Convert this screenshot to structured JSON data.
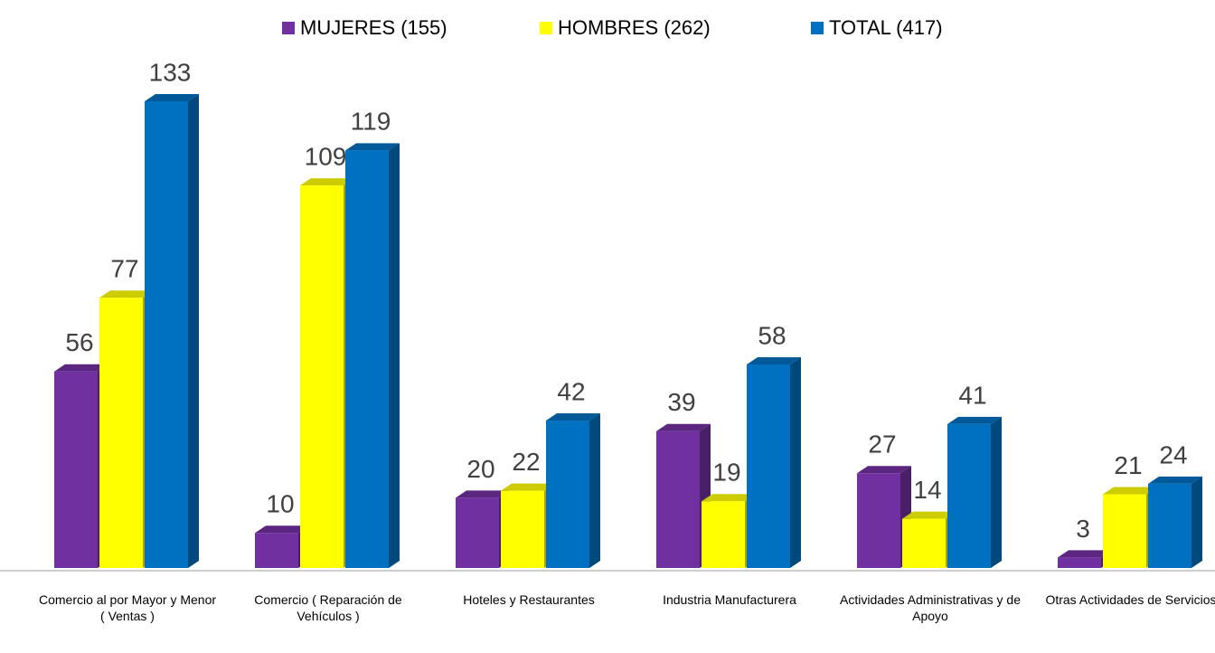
{
  "chart_data": {
    "type": "bar3d",
    "categories": [
      "Comercio al por Mayor y Menor  ( Ventas )",
      "Comercio ( Reparación de Vehículos )",
      "Hoteles y Restaurantes",
      "Industria Manufacturera",
      "Actividades Administrativas y de Apoyo",
      "Otras Actividades de Servicios"
    ],
    "series": [
      {
        "name": "MUJERES (155)",
        "color": "#7030a0",
        "values": [
          56,
          10,
          20,
          39,
          27,
          3
        ]
      },
      {
        "name": "HOMBRES (262)",
        "color": "#ffff00",
        "values": [
          77,
          109,
          22,
          19,
          14,
          21
        ]
      },
      {
        "name": "TOTAL (417)",
        "color": "#0070c0",
        "values": [
          133,
          119,
          42,
          58,
          41,
          24
        ]
      }
    ],
    "legend": "top"
  }
}
